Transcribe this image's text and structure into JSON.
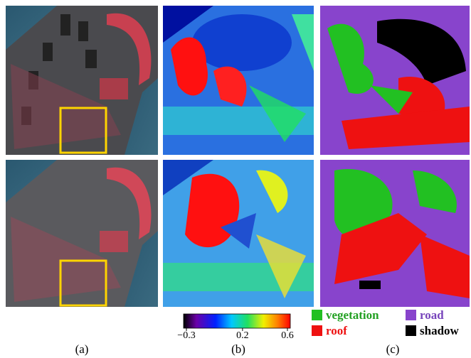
{
  "colorbar": {
    "range": [
      -0.3,
      0.6
    ],
    "ticks": [
      {
        "value": -0.3,
        "label": "−0.3"
      },
      0.2,
      0.6
    ]
  },
  "legend": [
    {
      "label": "vegetation",
      "color": "#22c022",
      "text_color": "#22a022"
    },
    {
      "label": "road",
      "color": "#8844cc",
      "text_color": "#7744bb"
    },
    {
      "label": "roof",
      "color": "#ee1111",
      "text_color": "#ee1111"
    },
    {
      "label": "shadow",
      "color": "#000000",
      "text_color": "#000000"
    }
  ],
  "captions": [
    "(a)",
    "(b)",
    "(c)"
  ]
}
